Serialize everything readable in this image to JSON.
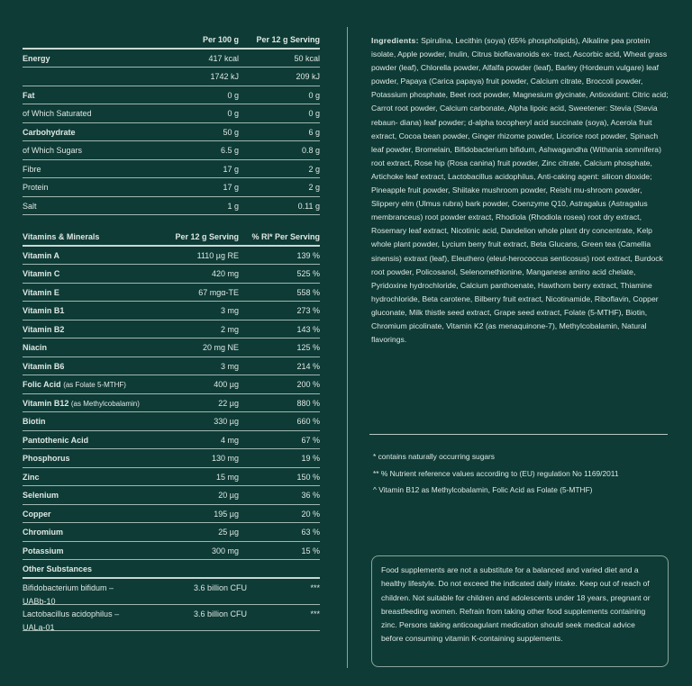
{
  "nutrition": {
    "headers": [
      "",
      "Per 100 g",
      "Per 12 g Serving"
    ],
    "rows": [
      {
        "label": "Energy",
        "per100": "417 kcal",
        "serving": "50 kcal",
        "bold": true
      },
      {
        "label": "",
        "per100": "1742 kJ",
        "serving": "209 kJ",
        "bold": false
      },
      {
        "label": "Fat",
        "per100": "0 g",
        "serving": "0 g",
        "bold": true
      },
      {
        "label": "of Which Saturated",
        "per100": "0 g",
        "serving": "0 g",
        "bold": false
      },
      {
        "label": "Carbohydrate",
        "per100": "50 g",
        "serving": "6 g",
        "bold": true
      },
      {
        "label": "of Which Sugars",
        "per100": "6.5 g",
        "serving": "0.8 g",
        "bold": false
      },
      {
        "label": "Fibre",
        "per100": "17 g",
        "serving": "2 g",
        "bold": false
      },
      {
        "label": "Protein",
        "per100": "17 g",
        "serving": "2 g",
        "bold": false
      },
      {
        "label": "Salt",
        "per100": "1 g",
        "serving": "0.11 g",
        "bold": false
      }
    ]
  },
  "vitamins": {
    "headers": [
      "Vitamins & Minerals",
      "Per 12 g Serving",
      "% RI* Per Serving"
    ],
    "rows": [
      {
        "label": "Vitamin A",
        "note": "",
        "amount": "1110 µg RE",
        "ri": "139 %"
      },
      {
        "label": "Vitamin C",
        "note": "",
        "amount": "420 mg",
        "ri": "525 %"
      },
      {
        "label": "Vitamin E",
        "note": "",
        "amount": "67 mgα-TE",
        "ri": "558 %"
      },
      {
        "label": "Vitamin B1",
        "note": "",
        "amount": "3 mg",
        "ri": "273 %"
      },
      {
        "label": "Vitamin B2",
        "note": "",
        "amount": "2 mg",
        "ri": "143 %"
      },
      {
        "label": "Niacin",
        "note": "",
        "amount": "20 mg NE",
        "ri": "125 %"
      },
      {
        "label": "Vitamin B6",
        "note": "",
        "amount": "3 mg",
        "ri": "214 %"
      },
      {
        "label": "Folic Acid",
        "note": "(as Folate 5-MTHF)",
        "amount": "400 µg",
        "ri": "200 %"
      },
      {
        "label": "Vitamin B12",
        "note": "(as Methylcobalamin)",
        "amount": "22 µg",
        "ri": "880 %"
      },
      {
        "label": "Biotin",
        "note": "",
        "amount": "330 µg",
        "ri": "660 %"
      },
      {
        "label": "Pantothenic Acid",
        "note": "",
        "amount": "4 mg",
        "ri": "67 %"
      },
      {
        "label": "Phosphorus",
        "note": "",
        "amount": "130 mg",
        "ri": "19 %"
      },
      {
        "label": "Zinc",
        "note": "",
        "amount": "15 mg",
        "ri": "150 %"
      },
      {
        "label": "Selenium",
        "note": "",
        "amount": "20 µg",
        "ri": "36 %"
      },
      {
        "label": "Copper",
        "note": "",
        "amount": "195 µg",
        "ri": "20 %"
      },
      {
        "label": "Chromium",
        "note": "",
        "amount": "25 µg",
        "ri": "63 %"
      },
      {
        "label": "Potassium",
        "note": "",
        "amount": "300 mg",
        "ri": "15 %"
      }
    ]
  },
  "other": {
    "title": "Other Substances",
    "rows": [
      {
        "label": "Bifidobacterium bifidum –",
        "label2": "UABb-10",
        "amount": "3.6 billion CFU",
        "ri": "***"
      },
      {
        "label": "Lactobacillus acidophilus –",
        "label2": "UALa-01",
        "amount": "3.6 billion CFU",
        "ri": "***"
      }
    ]
  },
  "ingredients": {
    "label": "Ingredients:",
    "text": "Spirulina, Lecithin (soya) (65% phospholipids), Alkaline pea protein isolate, Apple powder, Inulin, Citrus bioflavanoids ex- tract, Ascorbic acid, Wheat grass powder (leaf), Chlorella powder, Alfalfa powder (leaf), Barley (Hordeum vulgare) leaf powder, Papaya (Carica papaya) fruit powder, Calcium citrate, Broccoli powder, Potassium phosphate, Beet root powder, Magnesium glycinate, Antioxidant: Citric acid; Carrot root powder, Calcium carbonate, Alpha lipoic acid, Sweetener: Stevia (Stevia rebaun- diana) leaf powder; d-alpha tocopheryl acid succinate (soya), Acerola fruit extract, Cocoa bean powder, Ginger rhizome powder, Licorice root powder, Spinach leaf powder, Bromelain, Bifidobacterium bifidum, Ashwagandha (Withania somnifera) root extract, Rose hip (Rosa canina) fruit powder, Zinc citrate, Calcium phosphate, Artichoke leaf extract, Lactobacillus acidophilus, Anti-caking agent: silicon dioxide; Pineapple fruit powder, Shiitake mushroom powder, Reishi mu-shroom powder, Slippery elm (Ulmus rubra) bark powder, Coenzyme Q10, Astragalus (Astragalus membranceus) root powder extract, Rhodiola (Rhodiola rosea) root dry extract, Rosemary leaf extract, Nicotinic acid, Dandelion whole plant dry concentrate, Kelp whole plant powder, Lycium berry fruit extract, Beta Glucans, Green tea (Camellia sinensis) extraxt (leaf), Eleuthero (eleut-herococcus senticosus) root extract, Burdock root powder, Policosanol, Selenomethionine, Manganese amino acid chelate, Pyridoxine hydrochloride, Calcium panthoenate, Hawthorn berry extract, Thiamine hydrochloride, Beta carotene, Bilberry fruit extract, Nicotinamide, Riboflavin, Copper gluconate, Milk thistle seed extract, Grape seed extract, Folate (5-MTHF), Biotin, Chromium picolinate, Vitamin K2 (as menaquinone-7), Methylcobalamin, Natural flavorings."
  },
  "footnotes": [
    "* contains naturally occurring sugars",
    "** % Nutrient reference values according to (EU) regulation No 1169/2011",
    "^  Vitamin B12 as Methylcobalamin, Folic Acid as Folate (5-MTHF)"
  ],
  "warning": "Food supplements are not a substitute for a balanced and varied diet and a healthy lifestyle. Do not exceed the indicated daily intake. Keep out of reach of children. Not suitable for children and adolescents under 18 years, pregnant or breastfeeding women. Refrain from taking other food supplements containing zinc. Persons taking anticoagulant medication should seek medical advice before consuming vitamin K-containing supplements.",
  "colors": {
    "background": "#0e3b36",
    "text": "#dfe8e4",
    "rule": "#9fb8b1"
  }
}
